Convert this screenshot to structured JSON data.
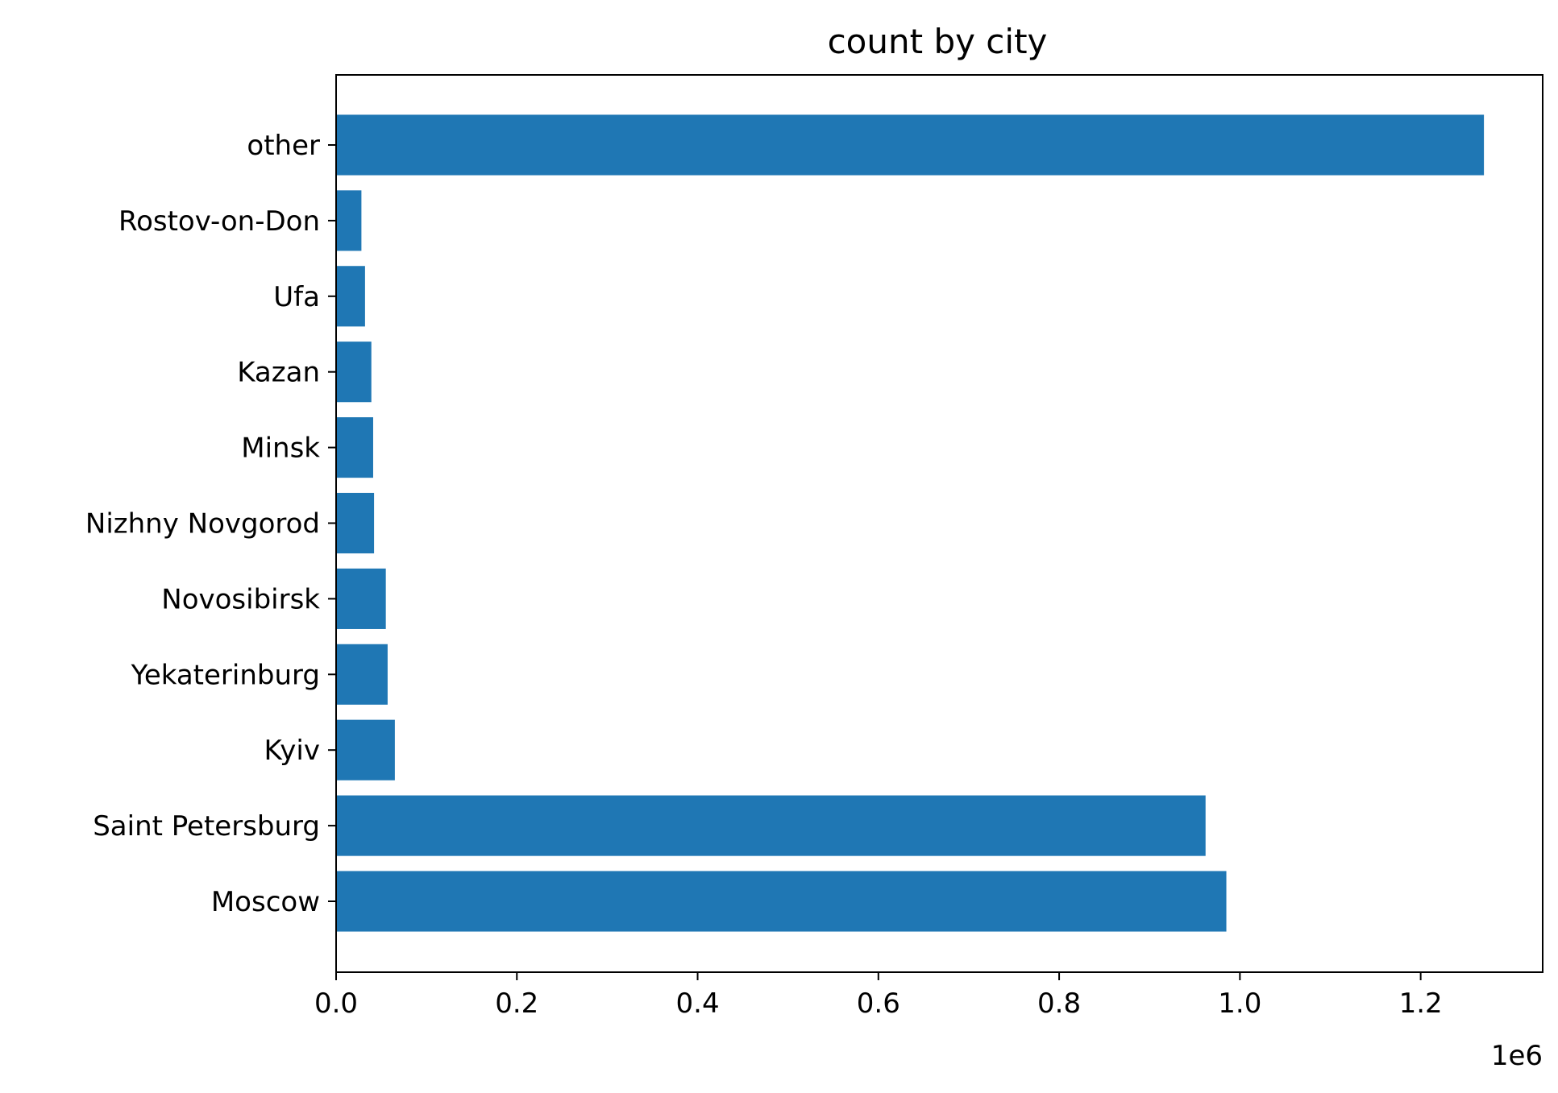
{
  "chart_data": {
    "type": "bar",
    "orientation": "horizontal",
    "title": "count by city",
    "xlabel": "",
    "ylabel": "",
    "categories": [
      "Moscow",
      "Saint Petersburg",
      "Kyiv",
      "Yekaterinburg",
      "Novosibirsk",
      "Nizhny Novgorod",
      "Minsk",
      "Kazan",
      "Ufa",
      "Rostov-on-Don",
      "other"
    ],
    "values": [
      985000,
      962000,
      65000,
      57000,
      55000,
      42000,
      41000,
      39000,
      32000,
      28000,
      1270000
    ],
    "xlim": [
      0,
      1335000
    ],
    "x_ticks": [
      0,
      200000,
      400000,
      600000,
      800000,
      1000000,
      1200000
    ],
    "x_tick_labels": [
      "0.0",
      "0.2",
      "0.4",
      "0.6",
      "0.8",
      "1.0",
      "1.2"
    ],
    "x_offset_label": "1e6",
    "grid": false,
    "bar_color": "#1f77b4"
  }
}
